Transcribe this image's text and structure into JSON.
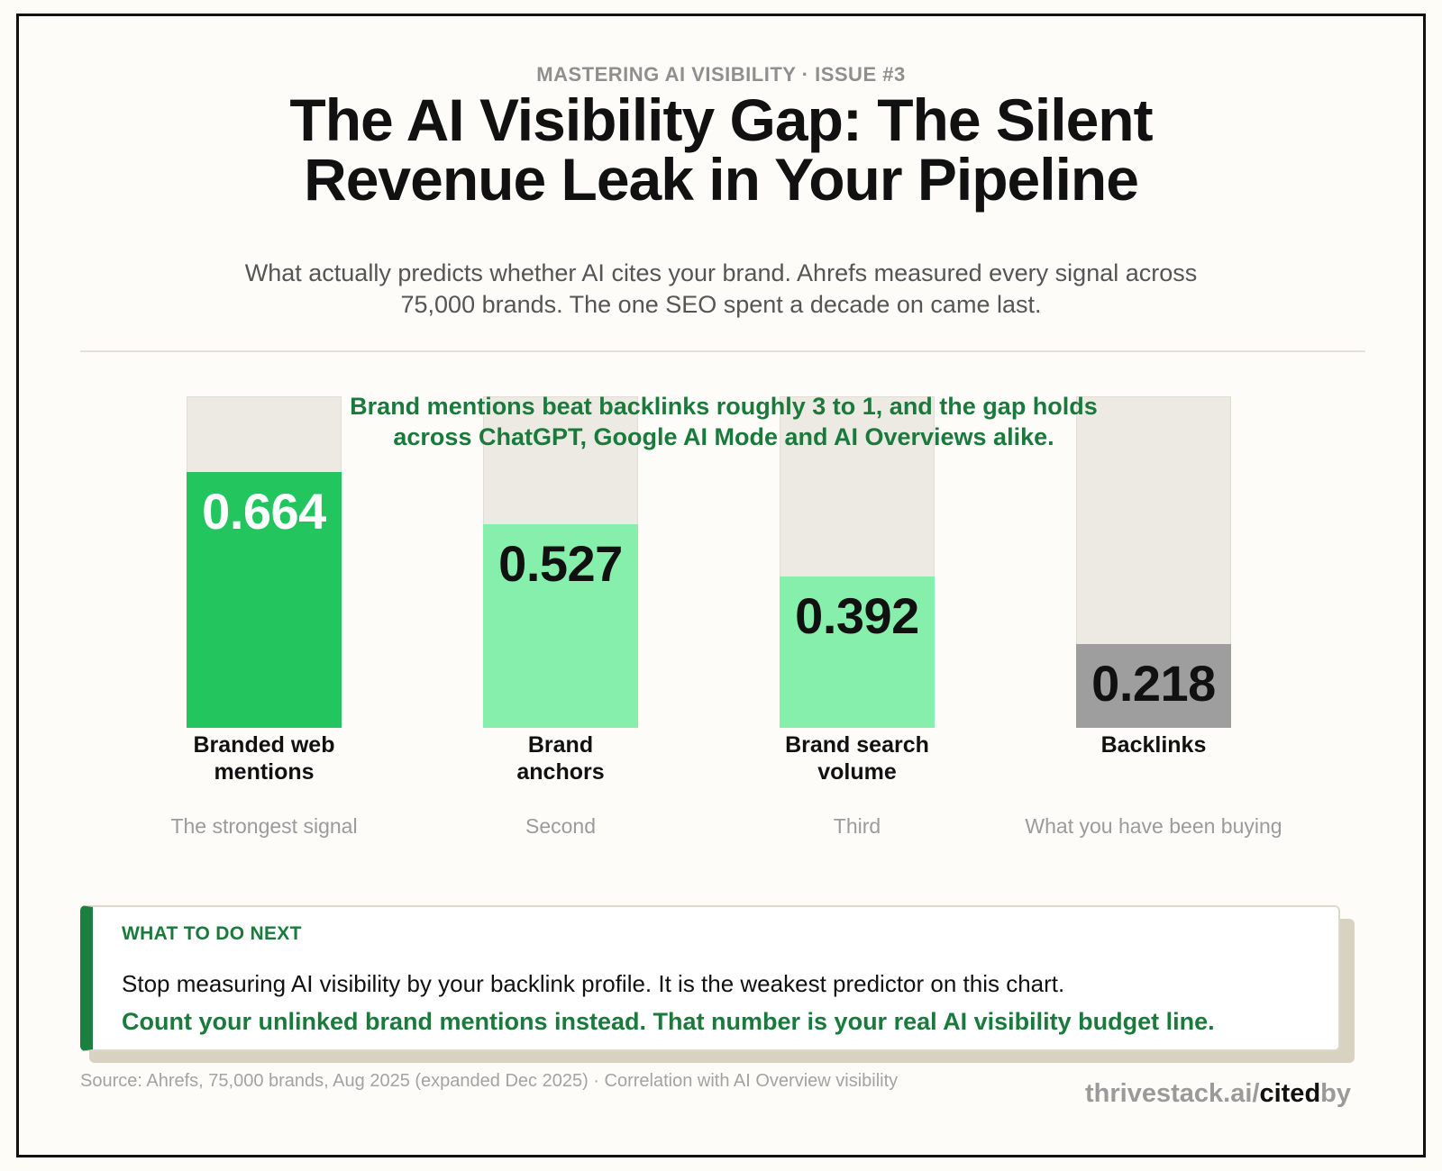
{
  "header": {
    "kicker": "MASTERING AI VISIBILITY  ·  ISSUE #3",
    "title_line1": "The AI Visibility Gap: The Silent",
    "title_line2": "Revenue Leak in Your Pipeline",
    "subtitle_line1": "What actually predicts whether AI cites your brand. Ahrefs measured every signal across",
    "subtitle_line2": "75,000 brands. The one SEO spent a decade on came last."
  },
  "chart_data": {
    "type": "bar",
    "categories": [
      "Branded web mentions",
      "Brand anchors",
      "Brand search volume",
      "Backlinks"
    ],
    "values": [
      0.664,
      0.527,
      0.392,
      0.218
    ],
    "value_labels": [
      "0.664",
      "0.527",
      "0.392",
      "0.218"
    ],
    "label_lines": [
      [
        "Branded web",
        "mentions"
      ],
      [
        "Brand",
        "anchors"
      ],
      [
        "Brand search",
        "volume"
      ],
      [
        "Backlinks"
      ]
    ],
    "sublabels": [
      "The strongest signal",
      "Second",
      "Third",
      "What you have been buying"
    ],
    "bar_colors": [
      "#22c55e",
      "#86efac",
      "#86efac",
      "#9e9e9e"
    ],
    "value_text_colors": [
      "#ffffff",
      "#111111",
      "#111111",
      "#111111"
    ],
    "ylim": [
      0,
      0.86
    ],
    "annotation_line1": "Brand mentions beat backlinks roughly 3 to 1, and the gap holds",
    "annotation_line2": "across ChatGPT, Google AI Mode and AI Overviews alike.",
    "track_color": "#edeae4"
  },
  "callout": {
    "kicker": "WHAT TO DO NEXT",
    "line1": "Stop measuring AI visibility by your backlink profile. It is the weakest predictor on this chart.",
    "line2": "Count your unlinked brand mentions instead. That number is your real AI visibility budget line."
  },
  "footer": {
    "source": "Source: Ahrefs, 75,000 brands, Aug 2025 (expanded Dec 2025) · Correlation with AI Overview visibility",
    "brand_domain": "thrivestack.ai/",
    "brand_cited": "cited",
    "brand_by": "by"
  },
  "colors": {
    "accent_green": "#1a7a3c",
    "background": "#fdfcf8"
  }
}
